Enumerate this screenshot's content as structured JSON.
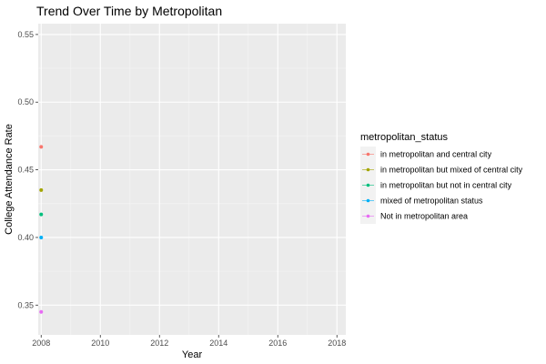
{
  "chart_data": {
    "type": "scatter",
    "title": "Trend Over Time by Metropolitan",
    "xlabel": "Year",
    "ylabel": "College Attendance Rate",
    "xlim": [
      2007.9,
      2018.3
    ],
    "ylim": [
      0.328,
      0.558
    ],
    "x_ticks": [
      2008,
      2010,
      2012,
      2014,
      2016,
      2018
    ],
    "y_ticks": [
      0.35,
      0.4,
      0.45,
      0.5,
      0.55
    ],
    "grid": true,
    "legend": {
      "title": "metropolitan_status",
      "placement": "right"
    },
    "series": [
      {
        "name": "in metropolitan and central city",
        "color": "#F8766D",
        "points": [
          {
            "x": 2008,
            "y": 0.467
          }
        ]
      },
      {
        "name": "in metropolitan but mixed of central city",
        "color": "#A3A500",
        "points": [
          {
            "x": 2008,
            "y": 0.435
          }
        ]
      },
      {
        "name": "in metropolitan but not in central city",
        "color": "#00BF7D",
        "points": [
          {
            "x": 2008,
            "y": 0.417
          }
        ]
      },
      {
        "name": "mixed of metropolitan status",
        "color": "#00B0F6",
        "points": [
          {
            "x": 2008,
            "y": 0.4
          }
        ]
      },
      {
        "name": "Not in metropolitan area",
        "color": "#E76BF3",
        "points": [
          {
            "x": 2008,
            "y": 0.345
          }
        ]
      }
    ]
  }
}
